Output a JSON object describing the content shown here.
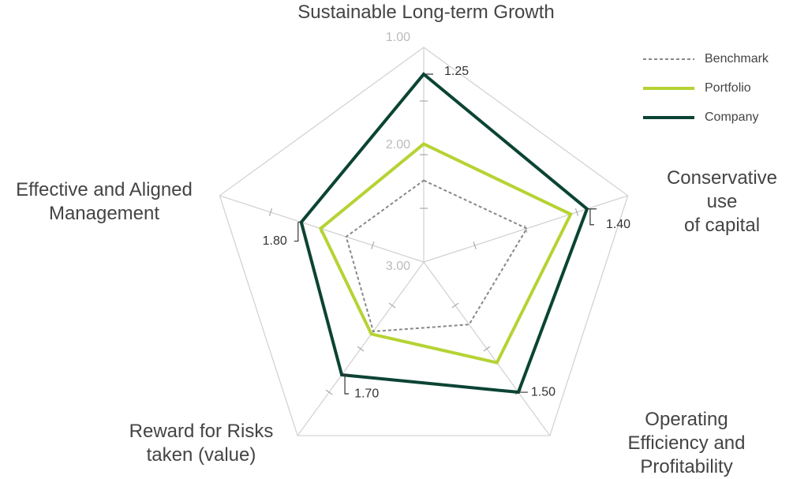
{
  "chart_data": {
    "type": "radar",
    "categories": [
      "Sustainable Long-term Growth",
      "Conservative use\nof capital",
      "Operating Efficiency and\nProfitability",
      "Reward for Risks\ntaken (value)",
      "Effective and Aligned\nManagement"
    ],
    "rlim": [
      3,
      1
    ],
    "rticks": [
      {
        "value": 1,
        "label": "1.00"
      },
      {
        "value": 2,
        "label": "2.00"
      },
      {
        "value": 3,
        "label": "3.00"
      }
    ],
    "rminor": [
      1.5,
      2.5
    ],
    "legend": "top-right",
    "series": [
      {
        "name": "Benchmark",
        "color": "#888888",
        "dashed": true,
        "values": [
          2.24,
          1.99,
          2.28,
          2.2,
          2.24
        ]
      },
      {
        "name": "Portfolio",
        "color": "#b5d334",
        "values": [
          1.9,
          1.56,
          1.84,
          2.17,
          1.99
        ]
      },
      {
        "name": "Company",
        "color": "#0b4434",
        "values": [
          1.25,
          1.4,
          1.5,
          1.7,
          1.8
        ],
        "value_labels": [
          "1.25",
          "1.40",
          "1.50",
          "1.70",
          "1.80"
        ]
      }
    ]
  }
}
